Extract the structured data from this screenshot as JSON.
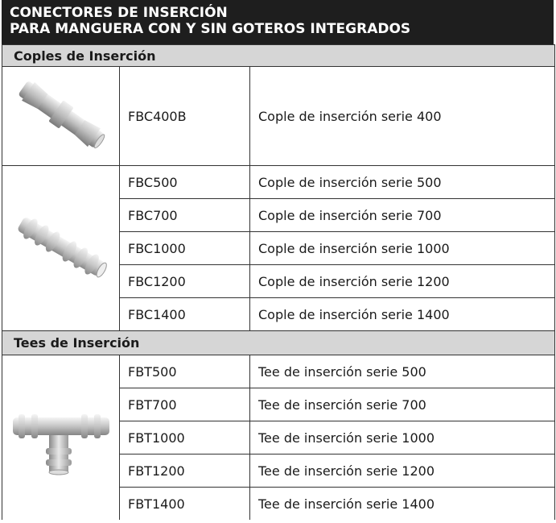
{
  "header": {
    "lines": [
      "CONECTORES DE INSERCIÓN",
      "PARA MANGUERA CON Y SIN GOTEROS INTEGRADOS"
    ]
  },
  "sections": [
    {
      "title": "Coples de Inserción",
      "groups": [
        {
          "rows": [
            [
              "FBC400B",
              "Cople de inserción serie 400"
            ]
          ]
        },
        {
          "rows": [
            [
              "FBC500",
              "Cople de inserción serie 500"
            ],
            [
              "FBC700",
              "Cople de inserción serie 700"
            ],
            [
              "FBC1000",
              "Cople de inserción serie 1000"
            ],
            [
              "FBC1200",
              "Cople de inserción serie 1200"
            ],
            [
              "FBC1400",
              "Cople de inserción serie 1400"
            ]
          ]
        }
      ]
    },
    {
      "title": "Tees de Inserción",
      "groups": [
        {
          "rows": [
            [
              "FBT500",
              "Tee de inserción serie 500"
            ],
            [
              "FBT700",
              "Tee de inserción serie 700"
            ],
            [
              "FBT1000",
              "Tee de inserción serie 1000"
            ],
            [
              "FBT1200",
              "Tee de inserción serie 1200"
            ],
            [
              "FBT1400",
              "Tee de inserción serie 1400"
            ]
          ]
        }
      ]
    }
  ]
}
